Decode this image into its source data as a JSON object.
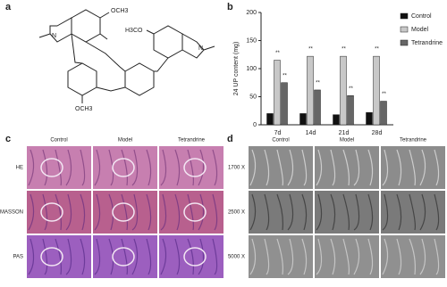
{
  "panels": {
    "a": "a",
    "b": "b",
    "c": "c",
    "d": "d"
  },
  "structure": {
    "labels": [
      "OCH3",
      "H3CO",
      "OCH3",
      "N",
      "N"
    ]
  },
  "chart_data": {
    "type": "bar",
    "ylabel": "24 UP content (mg)",
    "categories": [
      "7d",
      "14d",
      "21d",
      "28d"
    ],
    "series": [
      {
        "name": "Control",
        "color": "#111111",
        "values": [
          20,
          20,
          18,
          22
        ]
      },
      {
        "name": "Model",
        "color": "#c8c8c8",
        "values": [
          115,
          122,
          122,
          122
        ],
        "labels": [
          "**",
          "**",
          "**",
          "**"
        ]
      },
      {
        "name": "Tetrandrine",
        "color": "#666666",
        "values": [
          75,
          62,
          52,
          42
        ],
        "labels": [
          "**",
          "**",
          "**",
          "**"
        ]
      }
    ],
    "ylim": [
      0,
      200
    ],
    "yticks": [
      0,
      50,
      100,
      150,
      200
    ],
    "legend": "right"
  },
  "histology": {
    "columns": [
      "Control",
      "Model",
      "Tetrandrine"
    ],
    "rows": [
      "HE",
      "MASSON",
      "PAS"
    ]
  },
  "microscopy": {
    "columns": [
      "Control",
      "Model",
      "Tetrandrine"
    ],
    "rows": [
      "1700 X",
      "2500 X",
      "5000 X"
    ]
  }
}
